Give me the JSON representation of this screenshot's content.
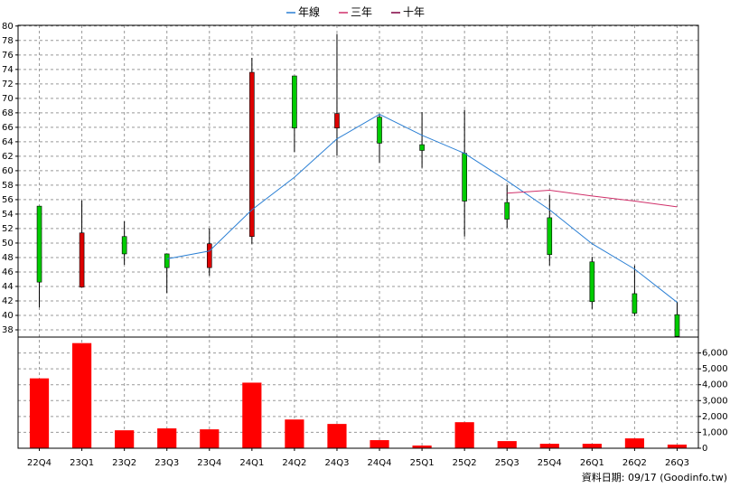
{
  "chart_data": {
    "type": "candlestick",
    "categories": [
      "22Q4",
      "23Q1",
      "23Q2",
      "23Q3",
      "23Q4",
      "24Q1",
      "24Q2",
      "24Q3",
      "24Q4",
      "25Q1",
      "25Q2",
      "25Q3",
      "25Q4",
      "26Q1",
      "26Q2",
      "26Q3"
    ],
    "open": [
      55.1,
      43.9,
      50.9,
      48.5,
      46.6,
      50.9,
      73.1,
      65.9,
      67.4,
      63.6,
      62.4,
      55.6,
      53.5,
      47.4,
      43.0,
      40.1
    ],
    "high": [
      55.1,
      55.9,
      53.0,
      48.5,
      52.0,
      75.6,
      73.1,
      78.9,
      67.9,
      68.1,
      68.4,
      58.0,
      56.6,
      48.1,
      46.9,
      41.9
    ],
    "low": [
      41.1,
      43.9,
      47.0,
      43.1,
      45.5,
      49.9,
      62.6,
      62.1,
      61.1,
      60.4,
      50.9,
      52.1,
      46.9,
      40.9,
      39.9,
      37.1
    ],
    "close": [
      44.6,
      51.4,
      48.5,
      46.6,
      49.9,
      73.6,
      65.9,
      67.9,
      63.8,
      62.8,
      55.8,
      53.3,
      48.4,
      41.9,
      40.3,
      37.1
    ],
    "up_color": "#dd0000",
    "down_color": "#00cc00",
    "series": [
      {
        "name": "年線",
        "color": "#2a7fd4",
        "values": [
          null,
          null,
          null,
          47.8,
          48.9,
          54.6,
          59.1,
          64.4,
          67.8,
          64.9,
          62.4,
          58.6,
          54.6,
          49.9,
          46.4,
          41.8
        ]
      },
      {
        "name": "三年",
        "color": "#d0306a",
        "values": [
          null,
          null,
          null,
          null,
          null,
          null,
          null,
          null,
          null,
          null,
          null,
          56.9,
          57.3,
          56.5,
          55.8,
          55.0
        ]
      },
      {
        "name": "十年",
        "color": "#800040",
        "values": [
          null,
          null,
          null,
          null,
          null,
          null,
          null,
          null,
          null,
          null,
          null,
          null,
          null,
          null,
          null,
          null
        ]
      }
    ],
    "ylim": [
      37,
      80.1
    ],
    "yticks": [
      38,
      40,
      42,
      44,
      46,
      48,
      50,
      52,
      54,
      56,
      58,
      60,
      62,
      64,
      66,
      68,
      70,
      72,
      74,
      76,
      78,
      80
    ],
    "grid": true,
    "volume": {
      "type": "bar",
      "color": "#ff0000",
      "values": [
        4400,
        6620,
        1130,
        1250,
        1190,
        4130,
        1810,
        1530,
        510,
        170,
        1640,
        450,
        280,
        280,
        620,
        230
      ],
      "ylim": [
        0,
        7000
      ],
      "yticks": [
        0,
        {
          "value": 1000,
          "label": "1,000"
        },
        {
          "value": 2000,
          "label": "2,000"
        },
        {
          "value": 3000,
          "label": "3,000"
        },
        {
          "value": 4000,
          "label": "4,000"
        },
        {
          "value": 5000,
          "label": "5,000"
        },
        {
          "value": 6000,
          "label": "6,000"
        }
      ]
    },
    "footer": "資料日期: 09/17  (Goodinfo.tw)"
  }
}
